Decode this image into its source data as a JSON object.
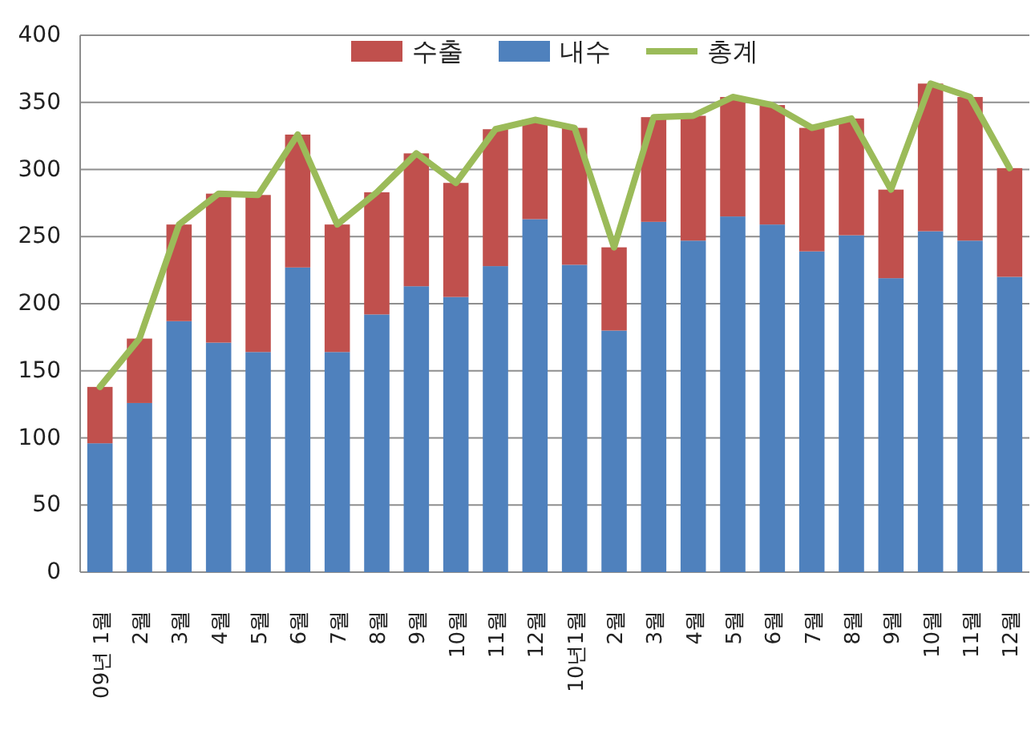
{
  "chart_data": {
    "type": "bar",
    "stacked": true,
    "categories": [
      "09년 1월",
      "2월",
      "3월",
      "4월",
      "5월",
      "6월",
      "7월",
      "8월",
      "9월",
      "10월",
      "11월",
      "12월",
      "10년1월",
      "2월",
      "3월",
      "4월",
      "5월",
      "6월",
      "7월",
      "8월",
      "9월",
      "10월",
      "11월",
      "12월"
    ],
    "series": [
      {
        "name": "내수",
        "color": "#4f81bd",
        "values": [
          96,
          126,
          187,
          171,
          164,
          227,
          164,
          192,
          213,
          205,
          228,
          263,
          229,
          180,
          261,
          247,
          265,
          259,
          239,
          251,
          219,
          254,
          247,
          220
        ]
      },
      {
        "name": "수출",
        "color": "#c0504d",
        "values": [
          42,
          48,
          72,
          111,
          117,
          99,
          95,
          91,
          99,
          85,
          102,
          74,
          102,
          62,
          78,
          93,
          89,
          89,
          92,
          87,
          66,
          110,
          107,
          81
        ]
      },
      {
        "name": "총계",
        "type": "line",
        "color": "#9bbb59",
        "values": [
          138,
          174,
          259,
          282,
          281,
          326,
          259,
          283,
          312,
          290,
          330,
          337,
          331,
          242,
          339,
          340,
          354,
          348,
          331,
          338,
          285,
          364,
          354,
          301
        ]
      }
    ],
    "ylim": [
      0,
      400
    ],
    "yticks": [
      0,
      50,
      100,
      150,
      200,
      250,
      300,
      350,
      400
    ],
    "grid": "y",
    "legend": "top"
  }
}
